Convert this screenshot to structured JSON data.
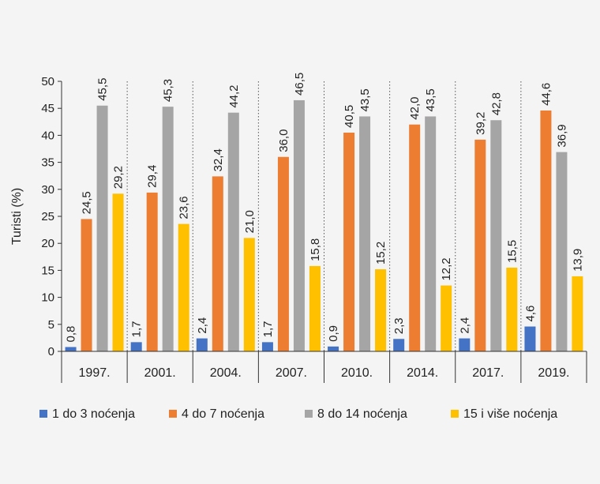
{
  "chart_data": {
    "type": "bar",
    "ylabel": "Turisti (%)",
    "xlabel": "",
    "ylim": [
      0,
      50
    ],
    "yticks": [
      0,
      5,
      10,
      15,
      20,
      25,
      30,
      35,
      40,
      45,
      50
    ],
    "categories": [
      "1997.",
      "2001.",
      "2004.",
      "2007.",
      "2010.",
      "2014.",
      "2017.",
      "2019."
    ],
    "series": [
      {
        "name": "1 do 3 noćenja",
        "color": "#4472c4",
        "values": [
          0.8,
          1.7,
          2.4,
          1.7,
          0.9,
          2.3,
          2.4,
          4.6
        ],
        "labels": [
          "0,8",
          "1,7",
          "2,4",
          "1,7",
          "0,9",
          "2,3",
          "2,4",
          "4,6"
        ]
      },
      {
        "name": "4 do 7 noćenja",
        "color": "#ed7d31",
        "values": [
          24.5,
          29.4,
          32.4,
          36.0,
          40.5,
          42.0,
          39.2,
          44.6
        ],
        "labels": [
          "24,5",
          "29,4",
          "32,4",
          "36,0",
          "40,5",
          "42,0",
          "39,2",
          "44,6"
        ]
      },
      {
        "name": "8 do 14 noćenja",
        "color": "#a5a5a5",
        "values": [
          45.5,
          45.3,
          44.2,
          46.5,
          43.5,
          43.5,
          42.8,
          36.9
        ],
        "labels": [
          "45,5",
          "45,3",
          "44,2",
          "46,5",
          "43,5",
          "43,5",
          "42,8",
          "36,9"
        ]
      },
      {
        "name": "15 i više noćenja",
        "color": "#ffc000",
        "values": [
          29.2,
          23.6,
          21.0,
          15.8,
          15.2,
          12.2,
          15.5,
          13.9
        ],
        "labels": [
          "29,2",
          "23,6",
          "21,0",
          "15,8",
          "15,2",
          "12,2",
          "15,5",
          "13,9"
        ]
      }
    ],
    "grid": false,
    "category_separators": "dotted",
    "legend_position": "bottom"
  }
}
